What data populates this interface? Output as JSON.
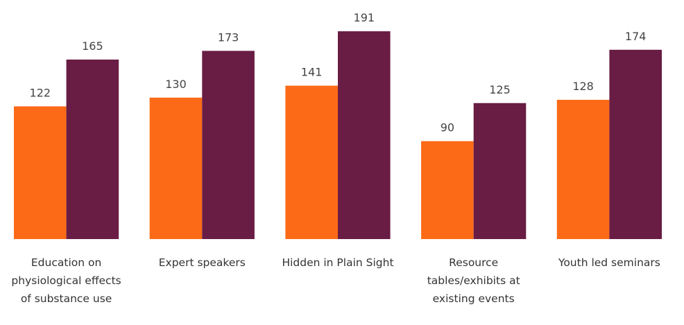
{
  "chart_data": {
    "type": "bar",
    "categories": [
      "Education on physiological effects of substance use",
      "Expert speakers",
      "Hidden in Plain Sight",
      "Resource tables/exhibits at existing events",
      "Youth led seminars"
    ],
    "series": [
      {
        "color": "#fc6a17",
        "values": [
          122,
          130,
          141,
          90,
          128
        ]
      },
      {
        "color": "#691c44",
        "values": [
          165,
          173,
          191,
          125,
          174
        ]
      }
    ]
  }
}
